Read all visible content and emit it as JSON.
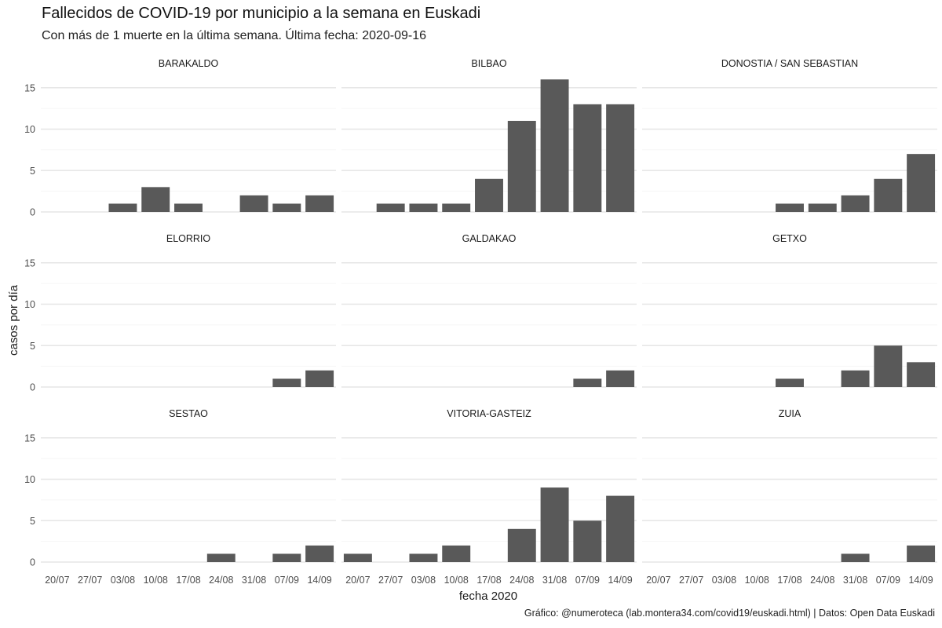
{
  "title": "Fallecidos de COVID-19 por municipio a la semana en Euskadi",
  "subtitle": "Con más de 1 muerte en la última semana. Última fecha: 2020-09-16",
  "caption": "Gráfico: @numeroteca (lab.montera34.com/covid19/euskadi.html) | Datos: Open Data Euskadi",
  "chart_data": {
    "type": "bar",
    "layout": "facet-grid-3x3",
    "xlabel": "fecha 2020",
    "ylabel": "casos por día",
    "ylim": [
      0,
      16
    ],
    "yticks": [
      0,
      5,
      10,
      15
    ],
    "grid": true,
    "categories": [
      "20/07",
      "27/07",
      "03/08",
      "10/08",
      "17/08",
      "24/08",
      "31/08",
      "07/09",
      "14/09"
    ],
    "bar_color": "#595959",
    "grid_color": "#e6e6e6",
    "panels": [
      {
        "name": "BARAKALDO",
        "values": [
          0,
          0,
          1,
          3,
          1,
          0,
          2,
          1,
          2
        ]
      },
      {
        "name": "BILBAO",
        "values": [
          0,
          1,
          1,
          1,
          4,
          11,
          16,
          13,
          13
        ]
      },
      {
        "name": "DONOSTIA / SAN SEBASTIAN",
        "values": [
          0,
          0,
          0,
          0,
          1,
          1,
          2,
          4,
          7
        ]
      },
      {
        "name": "ELORRIO",
        "values": [
          0,
          0,
          0,
          0,
          0,
          0,
          0,
          1,
          2
        ]
      },
      {
        "name": "GALDAKAO",
        "values": [
          0,
          0,
          0,
          0,
          0,
          0,
          0,
          1,
          2
        ]
      },
      {
        "name": "GETXO",
        "values": [
          0,
          0,
          0,
          0,
          1,
          0,
          2,
          5,
          3
        ]
      },
      {
        "name": "SESTAO",
        "values": [
          0,
          0,
          0,
          0,
          0,
          1,
          0,
          1,
          2
        ]
      },
      {
        "name": "VITORIA-GASTEIZ",
        "values": [
          1,
          0,
          1,
          2,
          0,
          4,
          9,
          5,
          8
        ]
      },
      {
        "name": "ZUIA",
        "values": [
          0,
          0,
          0,
          0,
          0,
          0,
          1,
          0,
          2
        ]
      }
    ]
  }
}
